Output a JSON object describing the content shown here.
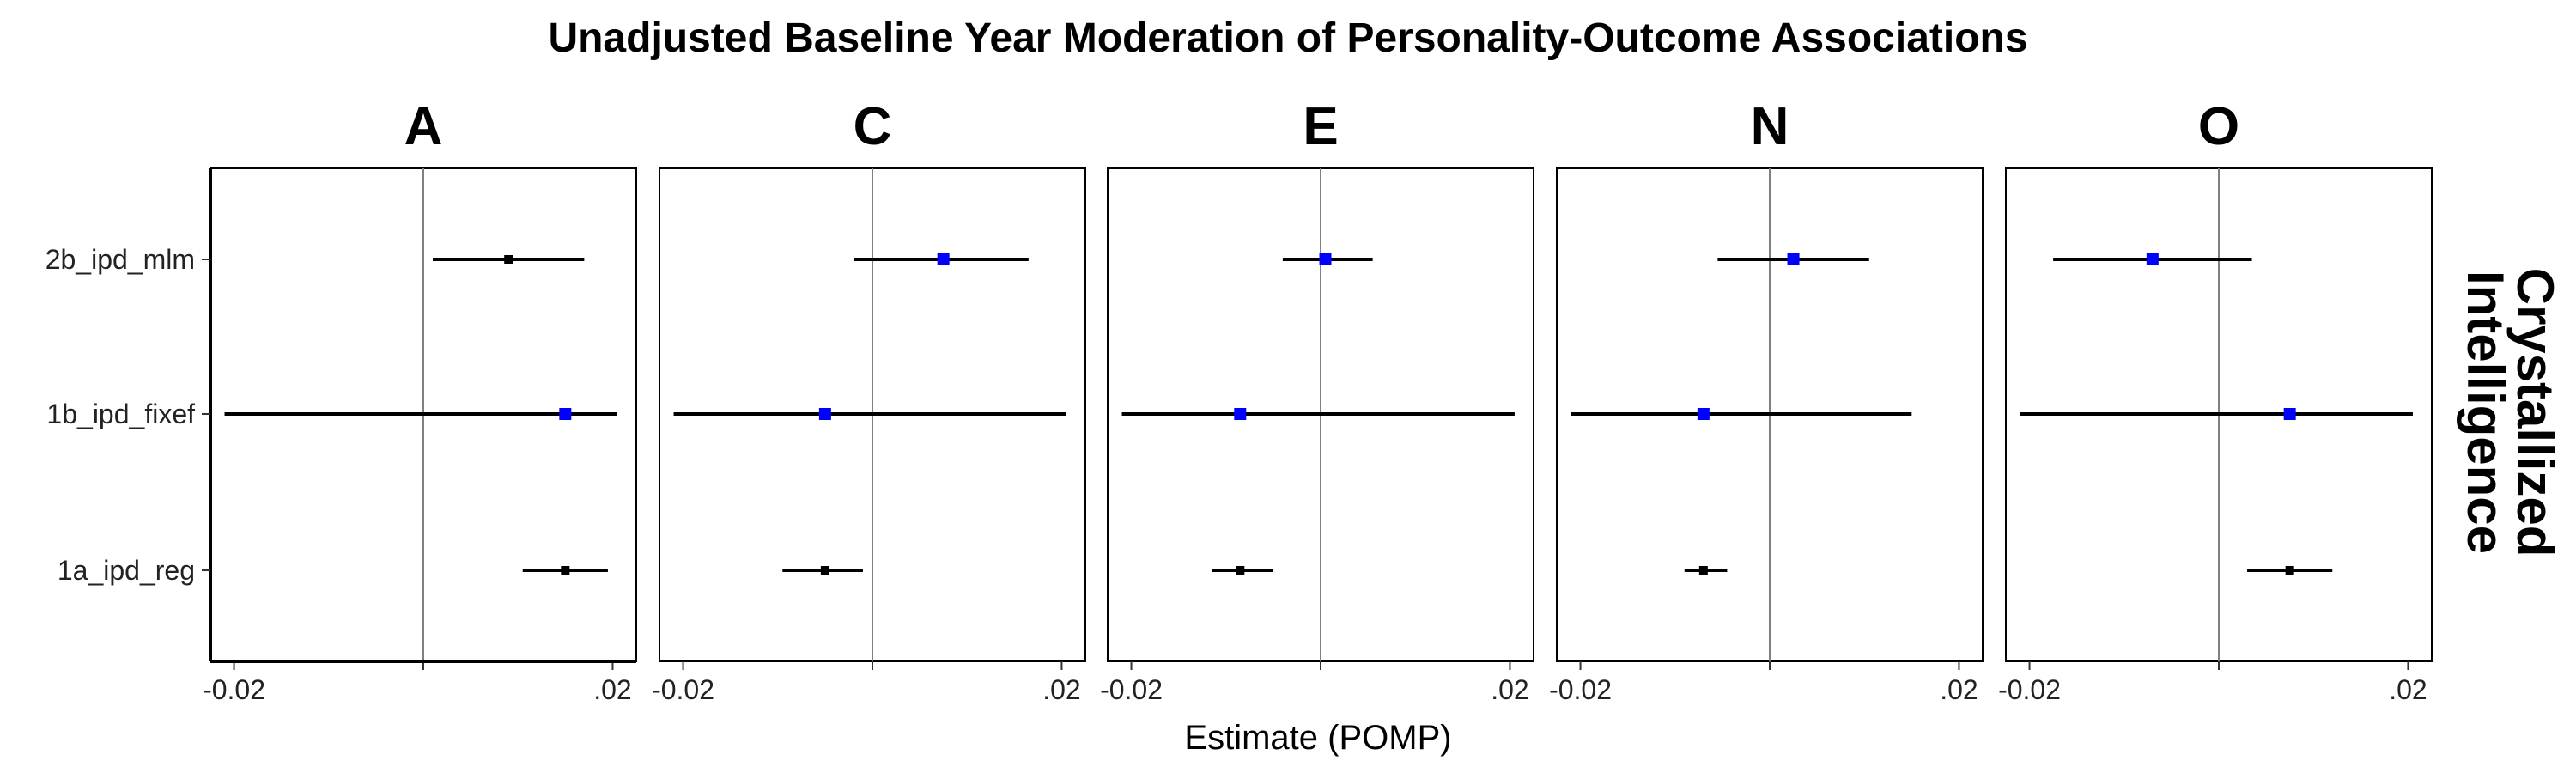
{
  "chart_data": {
    "type": "forest",
    "title": "Unadjusted Baseline Year Moderation of Personality-Outcome Associations",
    "xlabel": "Estimate (POMP)",
    "strip_label": [
      "Crystallized",
      "Intelligence"
    ],
    "xlim": [
      -0.0225,
      0.0225
    ],
    "x_ticks": [
      -0.02,
      0,
      0.02
    ],
    "x_tick_labels": [
      "-0.02",
      "",
      ".02"
    ],
    "reference_line": 0,
    "y_categories": [
      "2b_ipd_mlm",
      "1b_ipd_fixef",
      "1a_ipd_reg"
    ],
    "colors": {
      "significant": "#0000ff",
      "nonsignificant": "#000000",
      "line": "#000000",
      "ref": "#808080"
    },
    "panels": [
      {
        "name": "A",
        "rows": [
          {
            "model": "2b_ipd_mlm",
            "estimate": 0.009,
            "lower": 0.001,
            "upper": 0.017,
            "color": "#000000"
          },
          {
            "model": "1b_ipd_fixef",
            "estimate": 0.015,
            "lower": -0.021,
            "upper": 0.0205,
            "color": "#0000ff"
          },
          {
            "model": "1a_ipd_reg",
            "estimate": 0.015,
            "lower": 0.0105,
            "upper": 0.0195,
            "color": "#000000"
          }
        ]
      },
      {
        "name": "C",
        "rows": [
          {
            "model": "2b_ipd_mlm",
            "estimate": 0.0075,
            "lower": -0.002,
            "upper": 0.0165,
            "color": "#0000ff"
          },
          {
            "model": "1b_ipd_fixef",
            "estimate": -0.005,
            "lower": -0.021,
            "upper": 0.0205,
            "color": "#0000ff"
          },
          {
            "model": "1a_ipd_reg",
            "estimate": -0.005,
            "lower": -0.0095,
            "upper": -0.001,
            "color": "#000000"
          }
        ]
      },
      {
        "name": "E",
        "rows": [
          {
            "model": "2b_ipd_mlm",
            "estimate": 0.0005,
            "lower": -0.004,
            "upper": 0.0055,
            "color": "#0000ff"
          },
          {
            "model": "1b_ipd_fixef",
            "estimate": -0.0085,
            "lower": -0.021,
            "upper": 0.0205,
            "color": "#0000ff"
          },
          {
            "model": "1a_ipd_reg",
            "estimate": -0.0085,
            "lower": -0.0115,
            "upper": -0.005,
            "color": "#000000"
          }
        ]
      },
      {
        "name": "N",
        "rows": [
          {
            "model": "2b_ipd_mlm",
            "estimate": 0.0025,
            "lower": -0.0055,
            "upper": 0.0105,
            "color": "#0000ff"
          },
          {
            "model": "1b_ipd_fixef",
            "estimate": -0.007,
            "lower": -0.021,
            "upper": 0.015,
            "color": "#0000ff"
          },
          {
            "model": "1a_ipd_reg",
            "estimate": -0.007,
            "lower": -0.009,
            "upper": -0.0045,
            "color": "#000000"
          }
        ]
      },
      {
        "name": "O",
        "rows": [
          {
            "model": "2b_ipd_mlm",
            "estimate": -0.007,
            "lower": -0.0175,
            "upper": 0.0035,
            "color": "#0000ff"
          },
          {
            "model": "1b_ipd_fixef",
            "estimate": 0.0075,
            "lower": -0.021,
            "upper": 0.0205,
            "color": "#0000ff"
          },
          {
            "model": "1a_ipd_reg",
            "estimate": 0.0075,
            "lower": 0.003,
            "upper": 0.012,
            "color": "#000000"
          }
        ]
      }
    ]
  }
}
